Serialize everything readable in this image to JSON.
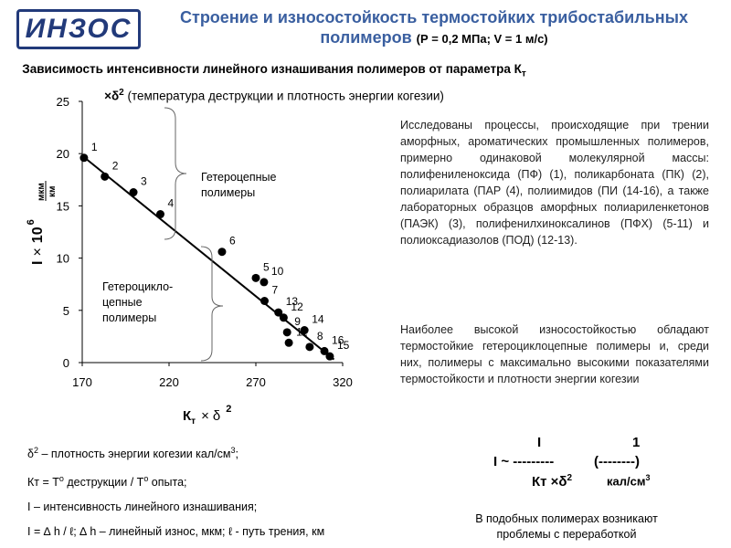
{
  "logo": "ИНЗОС",
  "title": "Строение и износостойкость термостойких трибостабильных полимеров",
  "title_conditions": "(Р = 0,2 МПа; V = 1 м/с)",
  "chart_data": {
    "type": "scatter",
    "title_parts": [
      "Зависимость интенсивности линейного изнашивания полимеров от параметра К",
      "т",
      " ×δ",
      "2",
      " (температура деструкции и плотность энергии когезии)"
    ],
    "x_label_parts": [
      "К",
      "т",
      "×",
      "δ",
      "2"
    ],
    "y_label_parts": [
      "I",
      "×",
      "10",
      "6",
      "мкм",
      "км"
    ],
    "xlim": [
      170,
      320
    ],
    "xticks": [
      170,
      220,
      270,
      320
    ],
    "ylim": [
      0,
      25
    ],
    "yticks": [
      0,
      5,
      10,
      15,
      20,
      25
    ],
    "series": [
      {
        "color": "#000000",
        "x": [
          171,
          183,
          199.5,
          215,
          250.5,
          270,
          274.7,
          275,
          283,
          286,
          288,
          289,
          298,
          301,
          309.5,
          312.6
        ],
        "values": [
          19.6,
          17.8,
          16.3,
          14.2,
          10.6,
          8.1,
          7.7,
          5.9,
          4.8,
          4.3,
          2.9,
          1.9,
          3.1,
          1.5,
          1.1,
          0.6
        ],
        "point_labels": [
          "1",
          "2",
          "3",
          "4",
          "6",
          "5",
          "10",
          "7",
          "13",
          "12",
          "9",
          "11",
          "14",
          "8",
          "16",
          "15"
        ]
      }
    ],
    "trend_line": {
      "color": "#000000",
      "x": [
        170,
        315
      ],
      "y": [
        19.8,
        0.3
      ]
    },
    "annotations": [
      {
        "text": "Гетероцепные\nполимеры"
      },
      {
        "text": "Гетероцикло-\nцепные\nполимеры"
      }
    ]
  },
  "description": [
    "Исследованы процессы, происходящие при трении аморфных, ароматических промышленных полимеров, примерно одинаковой молекулярной массы: полифениленоксида (ПФ) (1), поликарбоната (ПК) (2), полиарилата (ПАР (4), полиимидов (ПИ (14-16), а также лабораторных образцов аморфных полиариленкетонов (ПАЭК) (3), полифенилхиноксалинов (ПФХ) (5-11) и полиоксадиазолов (ПОД) (12-13).",
    "Наиболее высокой износостойкостью обладают термостойкие гетероциклоцепные полимеры и, среди них, полимеры с максимально высокими показателями термостойкости и плотности энергии когезии"
  ],
  "legend_lines": [
    [
      "δ",
      "2",
      " – плотность энергии когезии кал/см",
      "3",
      ";"
    ],
    [
      "Кт = Т",
      "о",
      " деструкции / Т",
      "о",
      " опыта;"
    ],
    [
      "I – интенсивность линейного изнашивания;"
    ],
    [
      "I = ∆ h / ℓ; ∆ h – линейный износ, мкм; ℓ - путь трения, км"
    ]
  ],
  "formula": {
    "top": [
      "I",
      "1"
    ],
    "middle": [
      "I ~ ---------",
      "(--------)"
    ],
    "bottom": [
      "Кт ×δ",
      "2",
      "кал/см",
      "3"
    ]
  },
  "footer": "В подобных полимерах возникают проблемы с переработкой"
}
